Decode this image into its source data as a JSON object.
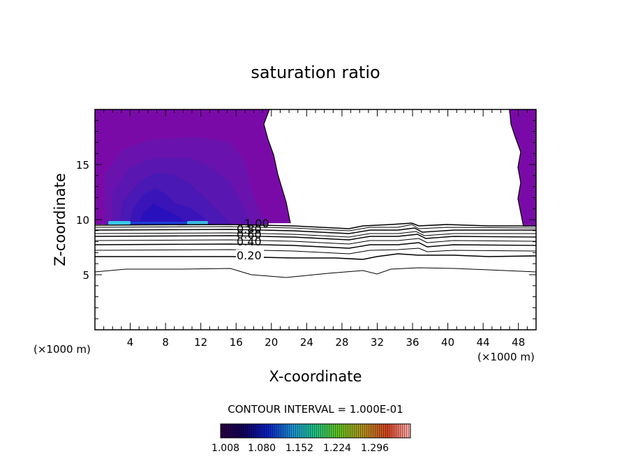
{
  "chart_data": {
    "type": "contour",
    "title": "saturation ratio",
    "xlabel": "X-coordinate",
    "ylabel": "Z-coordinate",
    "x_unit_left": "(×1000 m)",
    "x_unit_right": "(×1000 m)",
    "xlim": [
      0,
      50
    ],
    "ylim": [
      0,
      20
    ],
    "x_ticks": [
      4,
      8,
      12,
      16,
      20,
      24,
      28,
      32,
      36,
      40,
      44,
      48
    ],
    "y_ticks": [
      5,
      10,
      15
    ],
    "contour_levels": [
      "1.00",
      "0.80",
      "0.60",
      "0.40",
      "0.20"
    ],
    "contour_interval_text": "CONTOUR INTERVAL = 1.000E-01",
    "colorbar_ticks": [
      "1.008",
      "1.080",
      "1.152",
      "1.224",
      "1.296"
    ],
    "colors": {
      "fill_low": "#7a0aa8",
      "fill_mid": "#4a16b4",
      "fill_deep": "#2212b8",
      "highlight": "#3ac8e8"
    }
  }
}
